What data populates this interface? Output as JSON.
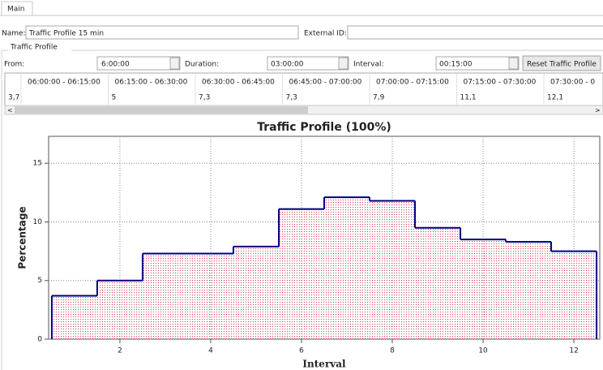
{
  "tabs": [
    "Main"
  ],
  "form": {
    "name_label": "Name:",
    "name_value": "Traffic Profile 15 min",
    "external_id_label": "External ID:",
    "group_title": "Traffic Profile",
    "from_label": "From:",
    "from_value": "6:00:00",
    "duration_label": "Duration:",
    "duration_value": "03:00:00",
    "interval_label": "Interval:",
    "interval_value": "00:15:00",
    "reset_button": "Reset Traffic Profile"
  },
  "table": {
    "headers": [
      "06:00:00 - 06:15:00",
      "06:15:00 - 06:30:00",
      "06:30:00 - 06:45:00",
      "06:45:00 - 07:00:00",
      "07:00:00 - 07:15:00",
      "07:15:00 - 07:30:00",
      "07:30:00 - 0"
    ],
    "rows": [
      [
        "3,7",
        "5",
        "7,3",
        "7,3",
        "7,9",
        "11,1",
        "12,1"
      ]
    ]
  },
  "chart_data": {
    "type": "step",
    "title": "Traffic Profile (100%)",
    "x_label": "Interval",
    "y_label": "Percentage",
    "x": [
      1,
      2,
      3,
      4,
      5,
      6,
      7,
      8,
      9,
      10,
      11,
      12
    ],
    "values": [
      3.7,
      5,
      7.3,
      7.3,
      7.9,
      11.1,
      12.1,
      11.8,
      9.5,
      8.5,
      8.3,
      7.5
    ],
    "line_color": "#000080",
    "fill_color": "#d9384e",
    "xlim": [
      0.43,
      12.57
    ],
    "ylim": [
      0,
      17.3
    ],
    "xticks": [
      2,
      4,
      6,
      8,
      10,
      12
    ],
    "yticks": [
      0,
      5,
      10,
      15
    ],
    "grid": true
  }
}
